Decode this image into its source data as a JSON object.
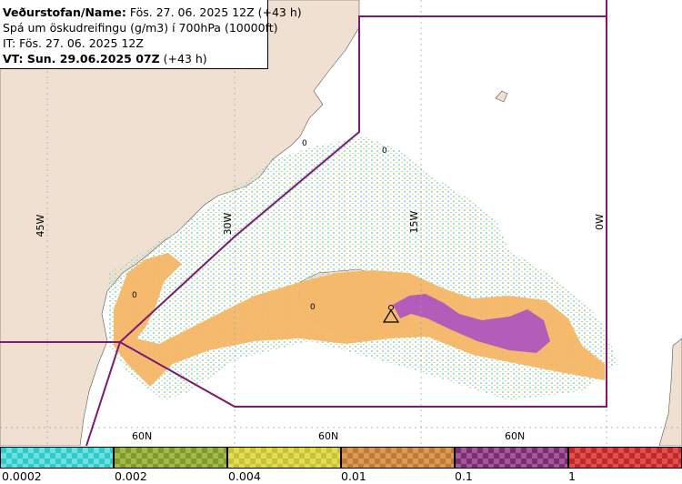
{
  "header": {
    "line1_label": "Veðurstofan/Name:",
    "line1_value": "Fös. 27. 06. 2025 12Z (+43 h)",
    "line2": "Spá um öskudreifingu (g/m3) í 700hPa (10000ft)",
    "line3": "IT: Fös. 27. 06. 2025 12Z",
    "line4_label": "VT: Sun. 29.06.2025 07Z",
    "line4_value": "(+43 h)"
  },
  "map": {
    "longitude_labels": [
      "45W",
      "30W",
      "15W",
      "0W"
    ],
    "latitude_labels": [
      "60N",
      "60N",
      "60N"
    ],
    "contour_labels": [
      "0",
      "0",
      "0",
      "0"
    ],
    "colors": {
      "land": "#efe0d2",
      "sea": "#ffffff",
      "orange": "#f7b56a",
      "purple": "#b45cba",
      "boundary": "#7a1a73",
      "grid": "#9aa0a8"
    },
    "volcano_symbol": "volcano-triangle-icon"
  },
  "legend": {
    "ticks": [
      "0.0002",
      "0.002",
      "0.004",
      "0.01",
      "0.1",
      "1"
    ],
    "bins": [
      {
        "color_a": "#2fc9c9",
        "color_b": "#6fe0e0"
      },
      {
        "color_a": "#7f9a2e",
        "color_b": "#a4bb4a"
      },
      {
        "color_a": "#c9c233",
        "color_b": "#e2dc5d"
      },
      {
        "color_a": "#c27a35",
        "color_b": "#d99b58"
      },
      {
        "color_a": "#7a2d74",
        "color_b": "#a55799"
      },
      {
        "color_a": "#c22a2a",
        "color_b": "#e04f4f"
      }
    ]
  }
}
